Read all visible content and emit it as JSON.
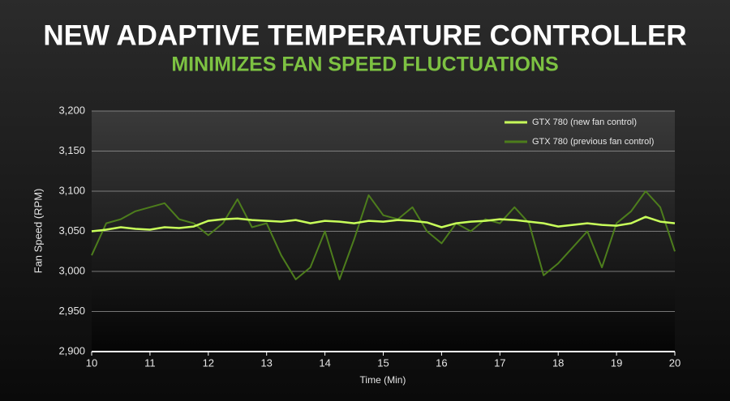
{
  "chart_data": {
    "type": "line",
    "title": "NEW ADAPTIVE TEMPERATURE CONTROLLER",
    "subtitle": "MINIMIZES FAN SPEED FLUCTUATIONS",
    "x_label": "Time (Min)",
    "y_label": "Fan Speed (RPM)",
    "x": [
      10,
      10.25,
      10.5,
      10.75,
      11,
      11.25,
      11.5,
      11.75,
      12,
      12.25,
      12.5,
      12.75,
      13,
      13.25,
      13.5,
      13.75,
      14,
      14.25,
      14.5,
      14.75,
      15,
      15.25,
      15.5,
      15.75,
      16,
      16.25,
      16.5,
      16.75,
      17,
      17.25,
      17.5,
      17.75,
      18,
      18.25,
      18.5,
      18.75,
      19,
      19.25,
      19.5,
      19.75,
      20
    ],
    "series": [
      {
        "name": "GTX 780 (new fan control)",
        "color": "#c8ff5a",
        "values": [
          3050,
          3052,
          3055,
          3053,
          3052,
          3055,
          3054,
          3056,
          3063,
          3065,
          3066,
          3064,
          3063,
          3062,
          3064,
          3060,
          3063,
          3062,
          3060,
          3063,
          3062,
          3064,
          3063,
          3061,
          3055,
          3060,
          3062,
          3063,
          3065,
          3064,
          3062,
          3060,
          3056,
          3058,
          3060,
          3058,
          3057,
          3060,
          3068,
          3062,
          3060
        ]
      },
      {
        "name": "GTX 780 (previous fan control)",
        "color": "#4d7d1c",
        "values": [
          3020,
          3060,
          3065,
          3075,
          3080,
          3085,
          3065,
          3060,
          3045,
          3060,
          3090,
          3055,
          3060,
          3020,
          2990,
          3005,
          3050,
          2990,
          3040,
          3095,
          3070,
          3065,
          3080,
          3050,
          3035,
          3060,
          3050,
          3065,
          3060,
          3080,
          3060,
          2995,
          3010,
          3030,
          3050,
          3005,
          3060,
          3075,
          3100,
          3080,
          3025
        ]
      }
    ],
    "xlim": [
      10,
      20
    ],
    "xticks": [
      10,
      11,
      12,
      13,
      14,
      15,
      16,
      17,
      18,
      19,
      20
    ],
    "ylim": [
      2900,
      3200
    ],
    "yticks": [
      {
        "value": 2900,
        "label": "2,900"
      },
      {
        "value": 2950,
        "label": "2,950"
      },
      {
        "value": 3000,
        "label": "3,000"
      },
      {
        "value": 3050,
        "label": "3,050"
      },
      {
        "value": 3100,
        "label": "3,100"
      },
      {
        "value": 3150,
        "label": "3,150"
      },
      {
        "value": 3200,
        "label": "3,200"
      }
    ],
    "grid": true,
    "legend": "top-right"
  }
}
